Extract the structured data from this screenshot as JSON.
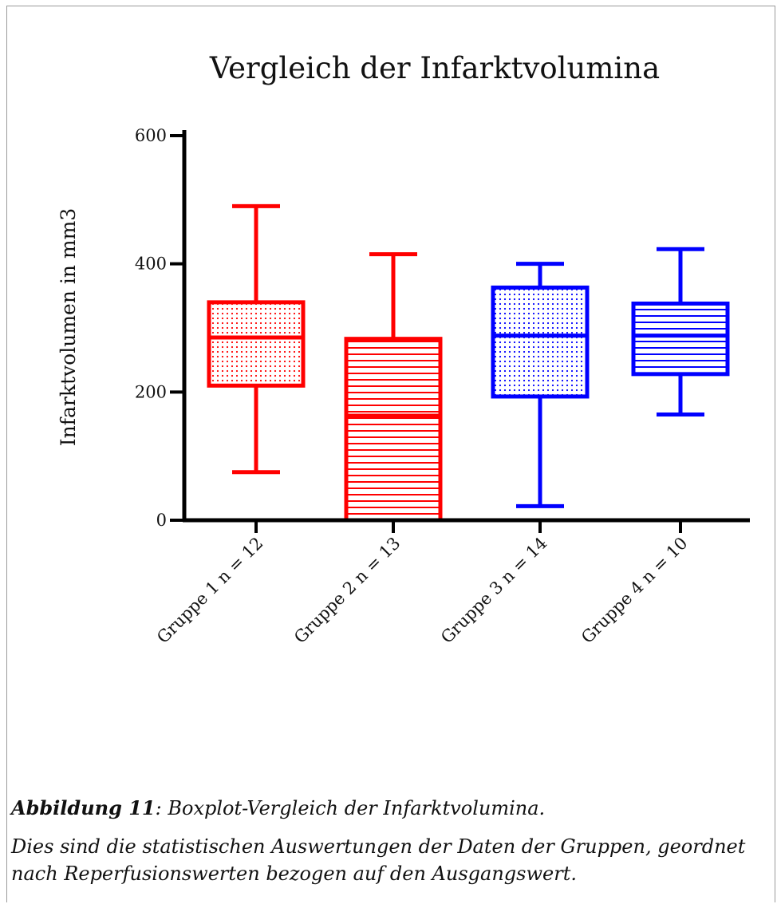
{
  "chart_data": {
    "type": "box",
    "title": "Vergleich der Infarktvolumina",
    "xlabel": "",
    "ylabel": "Infarktvolumen in mm3",
    "ylim": [
      0,
      600
    ],
    "yticks": [
      0,
      200,
      400,
      600
    ],
    "ytick_labels": [
      "0",
      "200",
      "400",
      "600"
    ],
    "categories": [
      "Gruppe 1 n = 12",
      "Gruppe 2 n = 13",
      "Gruppe 3 n = 14",
      "Gruppe 4 n = 10"
    ],
    "series": [
      {
        "min": 75,
        "q1": 210,
        "median": 285,
        "q3": 340,
        "max": 490,
        "color": "#ff0000",
        "fill": "dots"
      },
      {
        "min": 0,
        "q1": 0,
        "median": 163,
        "q3": 283,
        "max": 415,
        "color": "#ff0000",
        "fill": "hlines"
      },
      {
        "min": 22,
        "q1": 193,
        "median": 288,
        "q3": 363,
        "max": 400,
        "color": "#0000ff",
        "fill": "dots"
      },
      {
        "min": 165,
        "q1": 228,
        "median": 288,
        "q3": 338,
        "max": 423,
        "color": "#0000ff",
        "fill": "hlines"
      }
    ],
    "grid": false,
    "legend": "none"
  },
  "caption": {
    "label": "Abbildung 11",
    "title_text": ": Boxplot-Vergleich der Infarktvolumina.",
    "body": "Dies sind die statistischen Auswertungen der Daten der Gruppen, geordnet nach Reperfusionswerten bezogen auf den Ausgangswert."
  }
}
